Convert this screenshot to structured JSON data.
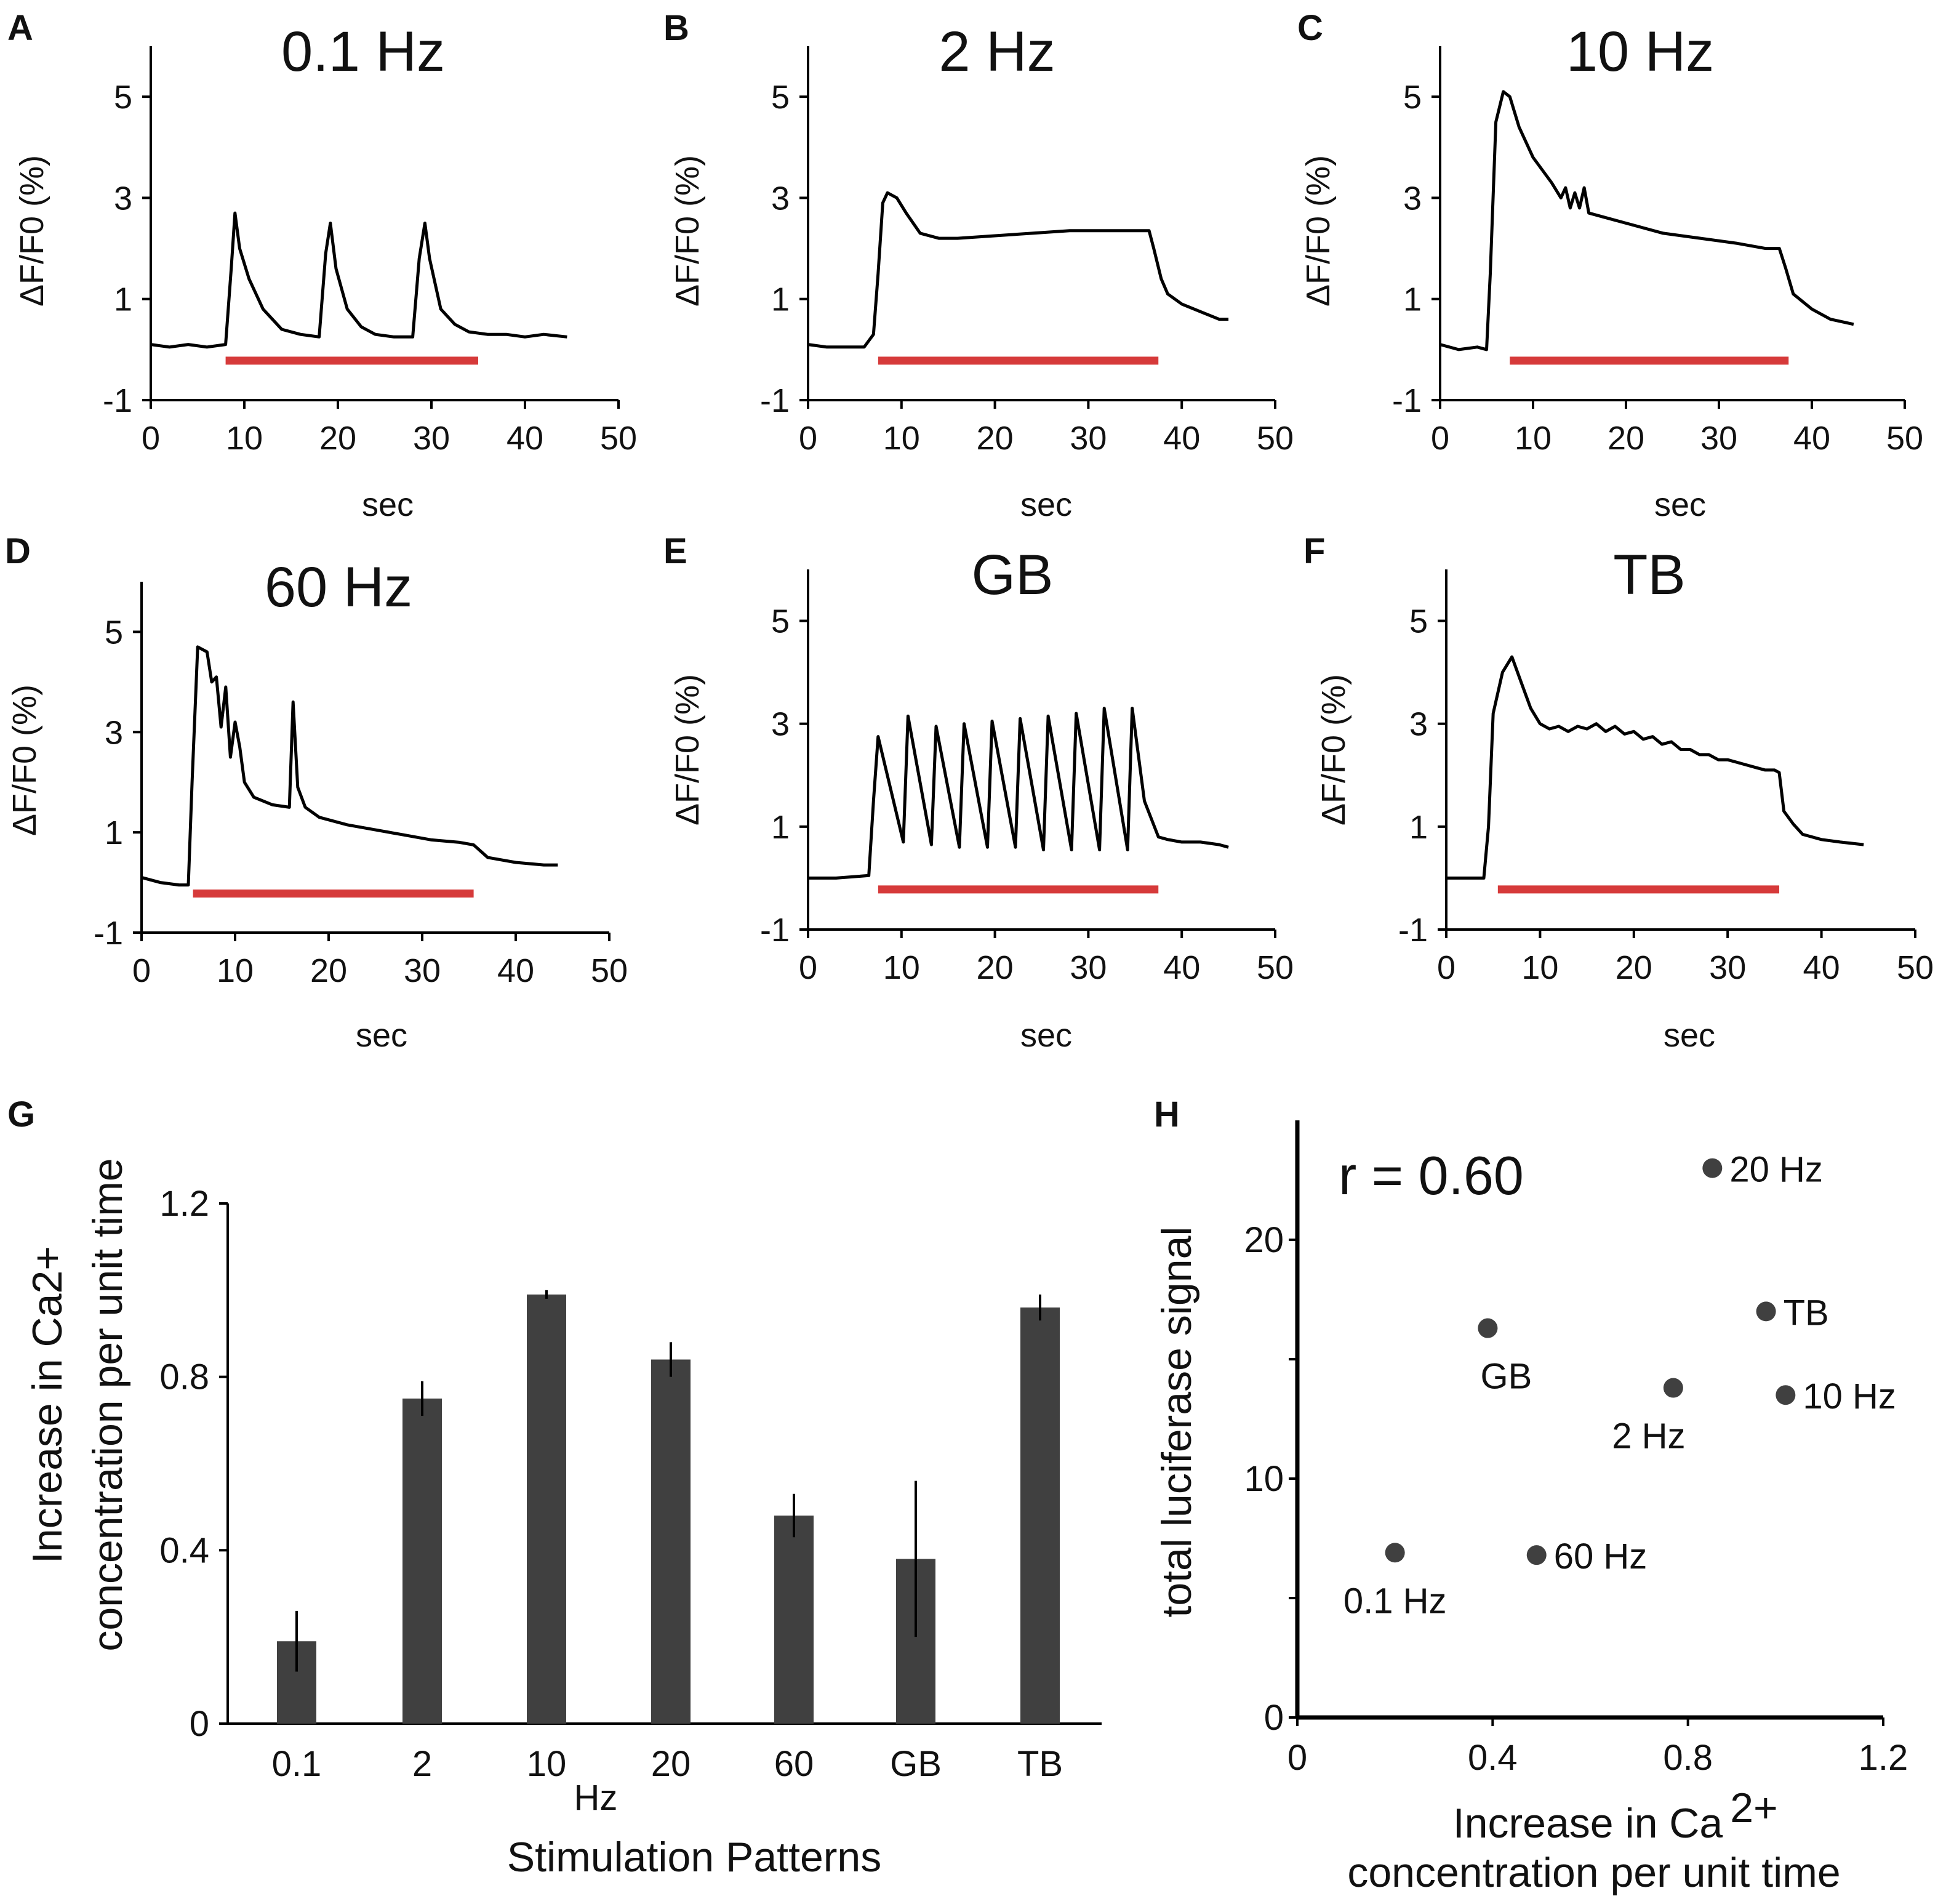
{
  "colors": {
    "trace": "#000000",
    "stimulus": "#d63a3a",
    "bar": "#404040",
    "point": "#404040"
  },
  "chart_data": [
    {
      "panel": "A",
      "type": "line",
      "title": "0.1 Hz",
      "xlabel": "sec",
      "ylabel": "ΔF/F0 (%)",
      "xlim": [
        0,
        50
      ],
      "ylim": [
        -1,
        6
      ],
      "xticks": [
        "0",
        "10",
        "20",
        "30",
        "40",
        "50"
      ],
      "yticks": [
        "-1",
        "1",
        "3",
        "5"
      ],
      "stimulus": [
        8,
        35
      ],
      "x": [
        0,
        2,
        4,
        6,
        8,
        8.6,
        9,
        9.5,
        10.5,
        12,
        14,
        16,
        18,
        18.7,
        19.2,
        19.8,
        21,
        22.5,
        24,
        26,
        28,
        28.7,
        29.3,
        29.8,
        31,
        32.5,
        34,
        36,
        38,
        40,
        42,
        44.5
      ],
      "y": [
        0.1,
        0.05,
        0.1,
        0.05,
        0.1,
        1.6,
        2.7,
        2.0,
        1.4,
        0.8,
        0.4,
        0.3,
        0.25,
        1.9,
        2.5,
        1.6,
        0.8,
        0.45,
        0.3,
        0.25,
        0.25,
        1.8,
        2.5,
        1.8,
        0.8,
        0.5,
        0.35,
        0.3,
        0.3,
        0.25,
        0.3,
        0.25
      ]
    },
    {
      "panel": "B",
      "type": "line",
      "title": "2 Hz",
      "xlabel": "sec",
      "ylabel": "ΔF/F0 (%)",
      "xlim": [
        0,
        50
      ],
      "ylim": [
        -1,
        6
      ],
      "xticks": [
        "0",
        "10",
        "20",
        "30",
        "40",
        "50"
      ],
      "yticks": [
        "-1",
        "1",
        "3",
        "5"
      ],
      "stimulus": [
        7.5,
        37.5
      ],
      "x": [
        0,
        2,
        4,
        6,
        7,
        7.5,
        8,
        8.5,
        9.5,
        10.5,
        12,
        14,
        16,
        20,
        24,
        28,
        32,
        35,
        36.5,
        37,
        37.8,
        38.5,
        40,
        42,
        44,
        45
      ],
      "y": [
        0.1,
        0.05,
        0.05,
        0.05,
        0.3,
        1.5,
        2.9,
        3.1,
        3.0,
        2.7,
        2.3,
        2.2,
        2.2,
        2.25,
        2.3,
        2.35,
        2.35,
        2.35,
        2.35,
        2.0,
        1.4,
        1.1,
        0.9,
        0.75,
        0.6,
        0.6
      ]
    },
    {
      "panel": "C",
      "type": "line",
      "title": "10 Hz",
      "xlabel": "sec",
      "ylabel": "ΔF/F0 (%)",
      "xlim": [
        0,
        50
      ],
      "ylim": [
        -1,
        6
      ],
      "xticks": [
        "0",
        "10",
        "20",
        "30",
        "40",
        "50"
      ],
      "yticks": [
        "-1",
        "1",
        "3",
        "5"
      ],
      "stimulus": [
        7.5,
        37.5
      ],
      "x": [
        0,
        2,
        4,
        5,
        5.4,
        6,
        6.8,
        7.5,
        8.5,
        10,
        12,
        13,
        13.5,
        14,
        14.5,
        15,
        15.5,
        16,
        18,
        20,
        24,
        28,
        32,
        35,
        36.5,
        37.2,
        38,
        40,
        42,
        44.5
      ],
      "y": [
        0.1,
        0.0,
        0.05,
        0.0,
        1.5,
        4.5,
        5.1,
        5.0,
        4.4,
        3.8,
        3.3,
        3.0,
        3.2,
        2.8,
        3.1,
        2.8,
        3.2,
        2.7,
        2.6,
        2.5,
        2.3,
        2.2,
        2.1,
        2.0,
        2.0,
        1.6,
        1.1,
        0.8,
        0.6,
        0.5
      ]
    },
    {
      "panel": "D",
      "type": "line",
      "title": "60 Hz",
      "xlabel": "sec",
      "ylabel": "ΔF/F0 (%)",
      "xlim": [
        0,
        50
      ],
      "ylim": [
        -1,
        6
      ],
      "xticks": [
        "0",
        "10",
        "20",
        "30",
        "40",
        "50"
      ],
      "yticks": [
        "-1",
        "1",
        "3",
        "5"
      ],
      "stimulus": [
        5.5,
        35.5
      ],
      "x": [
        0,
        2,
        4,
        5,
        5.4,
        6,
        7,
        7.5,
        8,
        8.5,
        9,
        9.5,
        10,
        10.5,
        11,
        12,
        14,
        15.8,
        16.2,
        16.7,
        17.5,
        19,
        22,
        25,
        28,
        31,
        34,
        35.5,
        37,
        40,
        43,
        44.5
      ],
      "y": [
        0.1,
        0.0,
        -0.05,
        -0.05,
        2.0,
        4.7,
        4.6,
        4.0,
        4.1,
        3.1,
        3.9,
        2.5,
        3.2,
        2.7,
        2.0,
        1.7,
        1.55,
        1.5,
        3.6,
        1.9,
        1.5,
        1.3,
        1.15,
        1.05,
        0.95,
        0.85,
        0.8,
        0.75,
        0.5,
        0.4,
        0.35,
        0.35
      ]
    },
    {
      "panel": "E",
      "type": "line",
      "title": "GB",
      "xlabel": "sec",
      "ylabel": "ΔF/F0 (%)",
      "xlim": [
        0,
        50
      ],
      "ylim": [
        -1,
        6
      ],
      "xticks": [
        "0",
        "10",
        "20",
        "30",
        "40",
        "50"
      ],
      "yticks": [
        "-1",
        "1",
        "3",
        "5"
      ],
      "stimulus": [
        7.5,
        37.5
      ],
      "x": [
        0,
        3,
        6.5,
        7,
        7.5,
        10.2,
        10.7,
        13.2,
        13.7,
        16.2,
        16.7,
        19.2,
        19.7,
        22.2,
        22.7,
        25.2,
        25.7,
        28.2,
        28.7,
        31.2,
        31.7,
        34.2,
        34.7,
        36,
        37.5,
        38.5,
        40,
        42,
        44,
        45
      ],
      "y": [
        0.0,
        0.0,
        0.05,
        1.5,
        2.75,
        0.7,
        3.15,
        0.65,
        2.95,
        0.6,
        3.0,
        0.6,
        3.05,
        0.6,
        3.1,
        0.55,
        3.15,
        0.55,
        3.2,
        0.55,
        3.3,
        0.55,
        3.3,
        1.5,
        0.8,
        0.75,
        0.7,
        0.7,
        0.65,
        0.6
      ]
    },
    {
      "panel": "F",
      "type": "line",
      "title": "TB",
      "xlabel": "sec",
      "ylabel": "ΔF/F0 (%)",
      "xlim": [
        0,
        50
      ],
      "ylim": [
        -1,
        6
      ],
      "xticks": [
        "0",
        "10",
        "20",
        "30",
        "40",
        "50"
      ],
      "yticks": [
        "-1",
        "1",
        "3",
        "5"
      ],
      "stimulus": [
        5.5,
        35.5
      ],
      "x": [
        0,
        2,
        4,
        4.5,
        5,
        6,
        7,
        8,
        9,
        10,
        11,
        12,
        13,
        14,
        15,
        16,
        17,
        18,
        19,
        20,
        21,
        22,
        23,
        24,
        25,
        26,
        27,
        28,
        29,
        30,
        31,
        32,
        33,
        34,
        35,
        35.5,
        36,
        37,
        38,
        40,
        42,
        44.5
      ],
      "y": [
        0.0,
        0.0,
        0.0,
        1.0,
        3.2,
        4.0,
        4.3,
        3.8,
        3.3,
        3.0,
        2.9,
        2.95,
        2.85,
        2.95,
        2.9,
        3.0,
        2.85,
        2.95,
        2.8,
        2.85,
        2.7,
        2.75,
        2.6,
        2.65,
        2.5,
        2.5,
        2.4,
        2.4,
        2.3,
        2.3,
        2.25,
        2.2,
        2.15,
        2.1,
        2.1,
        2.05,
        1.3,
        1.05,
        0.85,
        0.75,
        0.7,
        0.65
      ]
    },
    {
      "panel": "G",
      "type": "bar",
      "categories": [
        "0.1",
        "2",
        "10",
        "20",
        "60",
        "GB",
        "TB"
      ],
      "values": [
        0.19,
        0.75,
        0.99,
        0.84,
        0.48,
        0.38,
        0.96
      ],
      "errors": [
        0.07,
        0.04,
        0.01,
        0.04,
        0.05,
        0.18,
        0.03
      ],
      "ylim": [
        0,
        1.2
      ],
      "yticks": [
        "0",
        "0.4",
        "0.8",
        "1.2"
      ],
      "ylabel_line1": "Increase in Ca2+",
      "ylabel_line2": "concentration per unit time",
      "xlabel_unit": "Hz",
      "xlabel": "Stimulation Patterns"
    },
    {
      "panel": "H",
      "type": "scatter",
      "points": [
        {
          "label": "20 Hz",
          "x": 0.85,
          "y": 23.0
        },
        {
          "label": "TB",
          "x": 0.96,
          "y": 17.0
        },
        {
          "label": "GB",
          "x": 0.39,
          "y": 16.3
        },
        {
          "label": "10 Hz",
          "x": 1.0,
          "y": 13.5
        },
        {
          "label": "2 Hz",
          "x": 0.77,
          "y": 13.8
        },
        {
          "label": "60 Hz",
          "x": 0.49,
          "y": 6.8
        },
        {
          "label": "0.1 Hz",
          "x": 0.2,
          "y": 6.9
        }
      ],
      "annotation": "r = 0.60",
      "xlim": [
        0,
        1.2
      ],
      "ylim": [
        0,
        25
      ],
      "xticks": [
        "0",
        "0.4",
        "0.8",
        "1.2"
      ],
      "yticks": [
        "0",
        "10",
        "20"
      ],
      "ylabel": "total luciferase signal",
      "xlabel_line1": "Increase in Ca",
      "xlabel_sup": "2+",
      "xlabel_line2": "concentration per unit time"
    }
  ]
}
